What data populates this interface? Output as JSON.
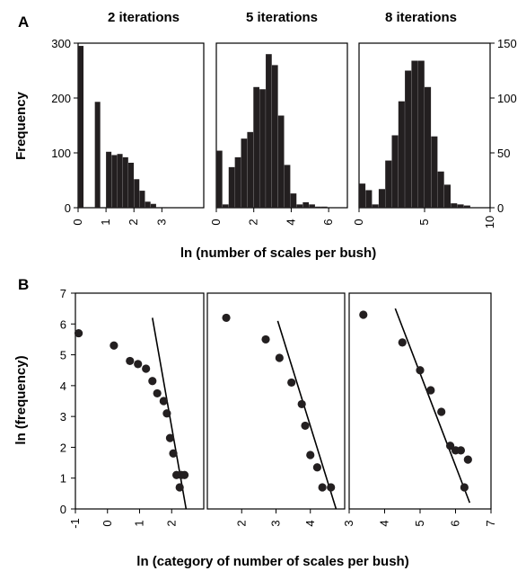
{
  "figure": {
    "panel_a_letter": "A",
    "panel_b_letter": "B",
    "panel_a_xlabel": "ln (number of scales per bush)",
    "panel_b_xlabel": "ln (category of number of scales per bush)",
    "panel_a_left_ylabel": "Frequency",
    "panel_b_ylabel": "ln (frequency)",
    "colors": {
      "bars": "#231f20",
      "points": "#231f20",
      "axes": "#000000"
    }
  },
  "chart_data": [
    {
      "type": "bar",
      "panel": "A",
      "title": "2 iterations",
      "ylabel": "Frequency",
      "xlabel": "ln (number of scales per bush)",
      "xlim": [
        0,
        4.5
      ],
      "ylim": [
        0,
        300
      ],
      "xticks": [
        0,
        1,
        2,
        3
      ],
      "yticks": [
        0,
        100,
        200,
        300
      ],
      "bin_width": 0.2,
      "bins": [
        {
          "x": 0.0,
          "y": 295
        },
        {
          "x": 0.6,
          "y": 193
        },
        {
          "x": 1.0,
          "y": 102
        },
        {
          "x": 1.2,
          "y": 96
        },
        {
          "x": 1.4,
          "y": 98
        },
        {
          "x": 1.6,
          "y": 92
        },
        {
          "x": 1.8,
          "y": 82
        },
        {
          "x": 2.0,
          "y": 52
        },
        {
          "x": 2.2,
          "y": 31
        },
        {
          "x": 2.4,
          "y": 11
        },
        {
          "x": 2.6,
          "y": 7
        },
        {
          "x": 2.8,
          "y": 1
        },
        {
          "x": 3.0,
          "y": 1
        }
      ]
    },
    {
      "type": "bar",
      "panel": "A",
      "title": "5 iterations",
      "xlim": [
        0,
        7
      ],
      "ylim": [
        0,
        150
      ],
      "xticks": [
        0,
        2,
        4,
        6
      ],
      "bin_width": 0.33,
      "bins": [
        {
          "x": 0.0,
          "y": 52
        },
        {
          "x": 0.33,
          "y": 3
        },
        {
          "x": 0.66,
          "y": 37
        },
        {
          "x": 0.99,
          "y": 46
        },
        {
          "x": 1.32,
          "y": 63
        },
        {
          "x": 1.65,
          "y": 69
        },
        {
          "x": 1.98,
          "y": 110
        },
        {
          "x": 2.31,
          "y": 108
        },
        {
          "x": 2.64,
          "y": 140
        },
        {
          "x": 2.97,
          "y": 130
        },
        {
          "x": 3.3,
          "y": 84
        },
        {
          "x": 3.63,
          "y": 39
        },
        {
          "x": 3.96,
          "y": 13
        },
        {
          "x": 4.29,
          "y": 3
        },
        {
          "x": 4.62,
          "y": 5
        },
        {
          "x": 4.95,
          "y": 3
        },
        {
          "x": 5.28,
          "y": 1
        },
        {
          "x": 5.61,
          "y": 1
        }
      ]
    },
    {
      "type": "bar",
      "panel": "A",
      "title": "8 iterations",
      "ylabel_right_ticks": true,
      "xlim": [
        0,
        10
      ],
      "ylim": [
        0,
        150
      ],
      "xticks": [
        0,
        5,
        10
      ],
      "yticks": [
        0,
        50,
        100,
        150
      ],
      "bin_width": 0.5,
      "bins": [
        {
          "x": 0.0,
          "y": 22
        },
        {
          "x": 0.5,
          "y": 16
        },
        {
          "x": 1.0,
          "y": 3
        },
        {
          "x": 1.5,
          "y": 17
        },
        {
          "x": 2.0,
          "y": 43
        },
        {
          "x": 2.5,
          "y": 66
        },
        {
          "x": 3.0,
          "y": 97
        },
        {
          "x": 3.5,
          "y": 125
        },
        {
          "x": 4.0,
          "y": 134
        },
        {
          "x": 4.5,
          "y": 134
        },
        {
          "x": 5.0,
          "y": 110
        },
        {
          "x": 5.5,
          "y": 65
        },
        {
          "x": 6.0,
          "y": 33
        },
        {
          "x": 6.5,
          "y": 21
        },
        {
          "x": 7.0,
          "y": 4
        },
        {
          "x": 7.5,
          "y": 3
        },
        {
          "x": 8.0,
          "y": 2
        }
      ]
    },
    {
      "type": "scatter",
      "panel": "B",
      "ylabel": "ln (frequency)",
      "xlabel": "ln (category of number of scales per bush)",
      "xlim": [
        -1,
        3
      ],
      "ylim": [
        0,
        7
      ],
      "xticks": [
        -1,
        0,
        1,
        2
      ],
      "yticks": [
        0,
        1,
        2,
        3,
        4,
        5,
        6,
        7
      ],
      "points": [
        [
          -0.9,
          5.7
        ],
        [
          0.2,
          5.3
        ],
        [
          0.7,
          4.8
        ],
        [
          0.95,
          4.7
        ],
        [
          1.2,
          4.55
        ],
        [
          1.4,
          4.15
        ],
        [
          1.55,
          3.75
        ],
        [
          1.75,
          3.5
        ],
        [
          1.85,
          3.1
        ],
        [
          1.95,
          2.3
        ],
        [
          2.05,
          1.8
        ],
        [
          2.15,
          1.1
        ],
        [
          2.3,
          1.1
        ],
        [
          2.25,
          0.7
        ],
        [
          2.4,
          1.1
        ]
      ],
      "fit_line": [
        [
          1.4,
          6.2
        ],
        [
          2.45,
          0.0
        ]
      ]
    },
    {
      "type": "scatter",
      "panel": "B",
      "xlim": [
        1,
        5
      ],
      "ylim": [
        0,
        7
      ],
      "xticks": [
        2,
        3,
        4
      ],
      "points": [
        [
          1.55,
          6.2
        ],
        [
          2.7,
          5.5
        ],
        [
          3.1,
          4.9
        ],
        [
          3.45,
          4.1
        ],
        [
          3.75,
          3.4
        ],
        [
          3.85,
          2.7
        ],
        [
          4.0,
          1.75
        ],
        [
          4.2,
          1.35
        ],
        [
          4.35,
          0.7
        ],
        [
          4.6,
          0.7
        ]
      ],
      "fit_line": [
        [
          3.05,
          6.1
        ],
        [
          4.75,
          0.0
        ]
      ]
    },
    {
      "type": "scatter",
      "panel": "B",
      "xlim": [
        3,
        7
      ],
      "ylim": [
        0,
        7
      ],
      "xticks": [
        3,
        4,
        5,
        6,
        7
      ],
      "points": [
        [
          3.4,
          6.3
        ],
        [
          4.5,
          5.4
        ],
        [
          5.0,
          4.5
        ],
        [
          5.3,
          3.85
        ],
        [
          5.6,
          3.15
        ],
        [
          5.85,
          2.05
        ],
        [
          6.0,
          1.9
        ],
        [
          6.15,
          1.9
        ],
        [
          6.25,
          0.7
        ],
        [
          6.35,
          1.6
        ]
      ],
      "fit_line": [
        [
          4.3,
          6.5
        ],
        [
          6.4,
          0.2
        ]
      ]
    }
  ]
}
